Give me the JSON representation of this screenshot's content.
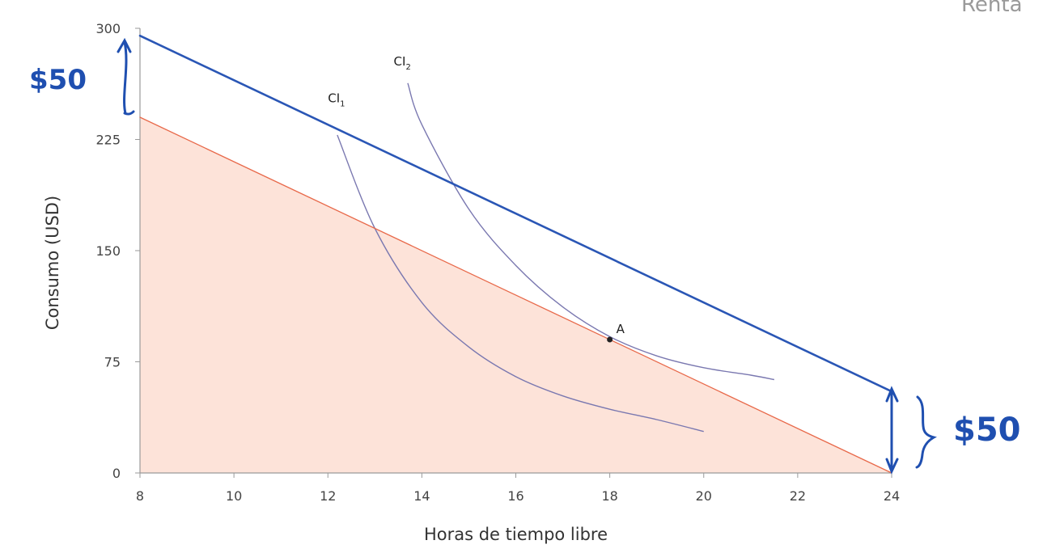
{
  "corner_text": "Renta",
  "chart_data": {
    "type": "line",
    "xlabel": "Horas de tiempo libre",
    "ylabel": "Consumo (USD)",
    "xlim": [
      8,
      24
    ],
    "ylim": [
      0,
      300
    ],
    "x_ticks": [
      8,
      10,
      12,
      14,
      16,
      18,
      20,
      22,
      24
    ],
    "y_ticks": [
      0,
      75,
      150,
      225,
      300
    ],
    "grid": false,
    "colors": {
      "budget_original": "#e8694a",
      "budget_fill": "#fde3d9",
      "budget_shifted": "#2a56b5",
      "indifference": "#7a78b0",
      "handwriting": "#1f4fb0"
    },
    "budget_lines": [
      {
        "id": "original",
        "points": [
          [
            8,
            240
          ],
          [
            24,
            0
          ]
        ],
        "shaded": true
      },
      {
        "id": "shifted",
        "points": [
          [
            8,
            295
          ],
          [
            24,
            55
          ]
        ],
        "shaded": false
      }
    ],
    "indifference_curves": [
      {
        "label_main": "CI",
        "label_sub": "1",
        "label_at": [
          12,
          250
        ],
        "points": [
          [
            12.2,
            228
          ],
          [
            13,
            165
          ],
          [
            14,
            115
          ],
          [
            15,
            85
          ],
          [
            16,
            65
          ],
          [
            17,
            52
          ],
          [
            18,
            43
          ],
          [
            19,
            36
          ],
          [
            20,
            28
          ]
        ]
      },
      {
        "label_main": "CI",
        "label_sub": "2",
        "label_at": [
          13.4,
          275
        ],
        "points": [
          [
            13.7,
            263
          ],
          [
            14,
            235
          ],
          [
            15,
            178
          ],
          [
            16,
            140
          ],
          [
            17,
            112
          ],
          [
            18,
            92
          ],
          [
            19,
            79
          ],
          [
            20,
            71
          ],
          [
            21,
            66
          ],
          [
            21.5,
            63
          ]
        ]
      }
    ],
    "points": [
      {
        "label": "A",
        "x": 18,
        "y": 90
      }
    ],
    "annotations": [
      {
        "text": "$50",
        "note": "handwritten, left of y-axis at the top"
      },
      {
        "text": "$50",
        "note": "handwritten, right of x=24"
      }
    ]
  }
}
